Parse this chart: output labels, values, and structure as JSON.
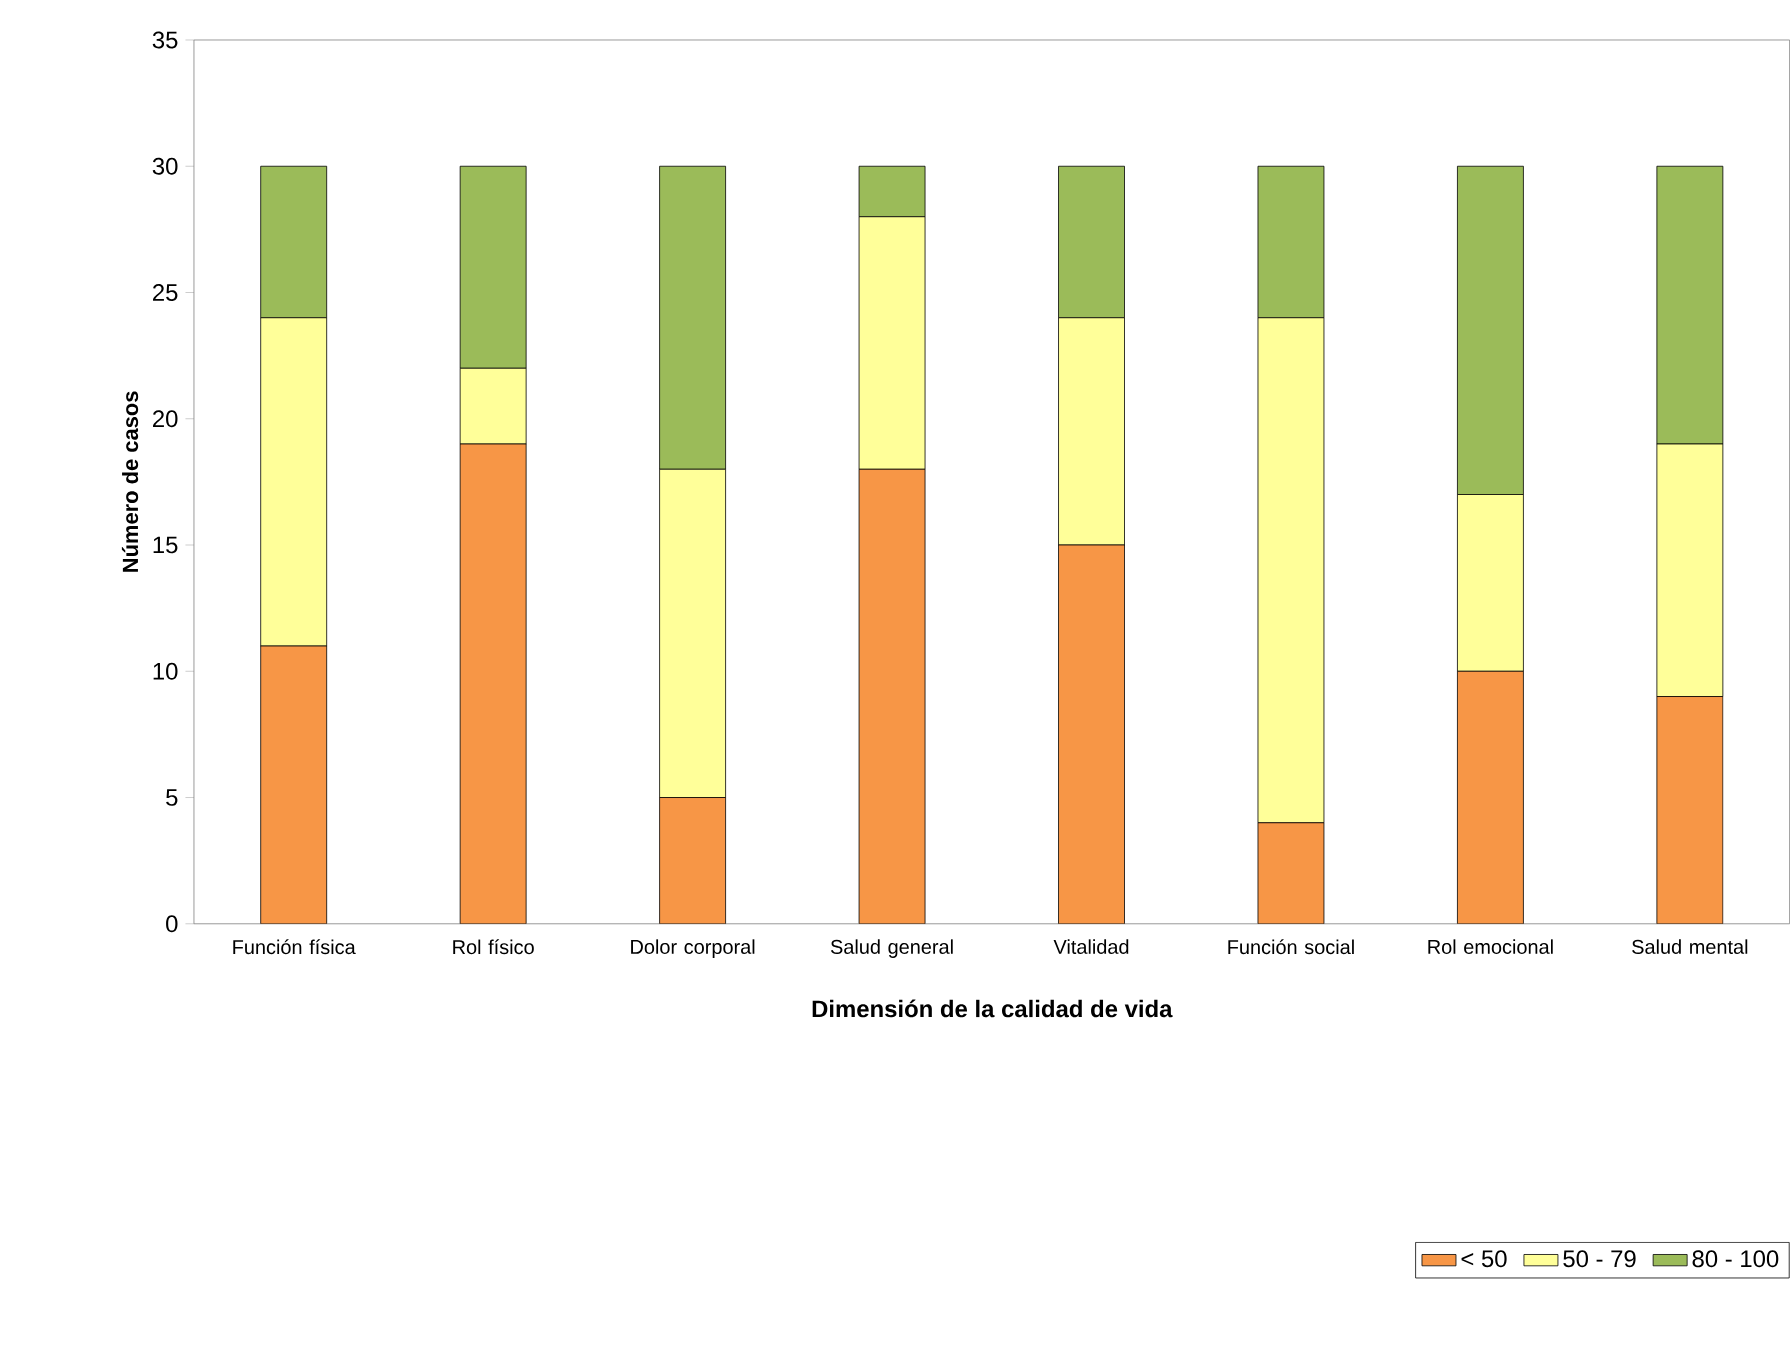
{
  "chart_data": {
    "type": "bar",
    "stacked": true,
    "xlabel": "Dimensión de la calidad  de vida",
    "ylabel": "Número de casos",
    "categories": [
      "Función física",
      "Rol físico",
      "Dolor corporal",
      "Salud general",
      "Vitalidad",
      "Función social",
      "Rol emocional",
      "Salud mental"
    ],
    "series": [
      {
        "name": "< 50",
        "color": "#f79646",
        "values": [
          11,
          19,
          5,
          18,
          15,
          4,
          10,
          9
        ]
      },
      {
        "name": "50 - 79",
        "color": "#ffff99",
        "values": [
          13,
          3,
          13,
          10,
          9,
          20,
          7,
          10
        ]
      },
      {
        "name": "80 - 100",
        "color": "#9bbb59",
        "values": [
          6,
          8,
          12,
          2,
          6,
          6,
          13,
          11
        ]
      }
    ],
    "ylim": [
      0,
      35
    ],
    "yticks": [
      0,
      5,
      10,
      15,
      20,
      25,
      30,
      35
    ],
    "grid": false,
    "legend": "bottom right"
  }
}
